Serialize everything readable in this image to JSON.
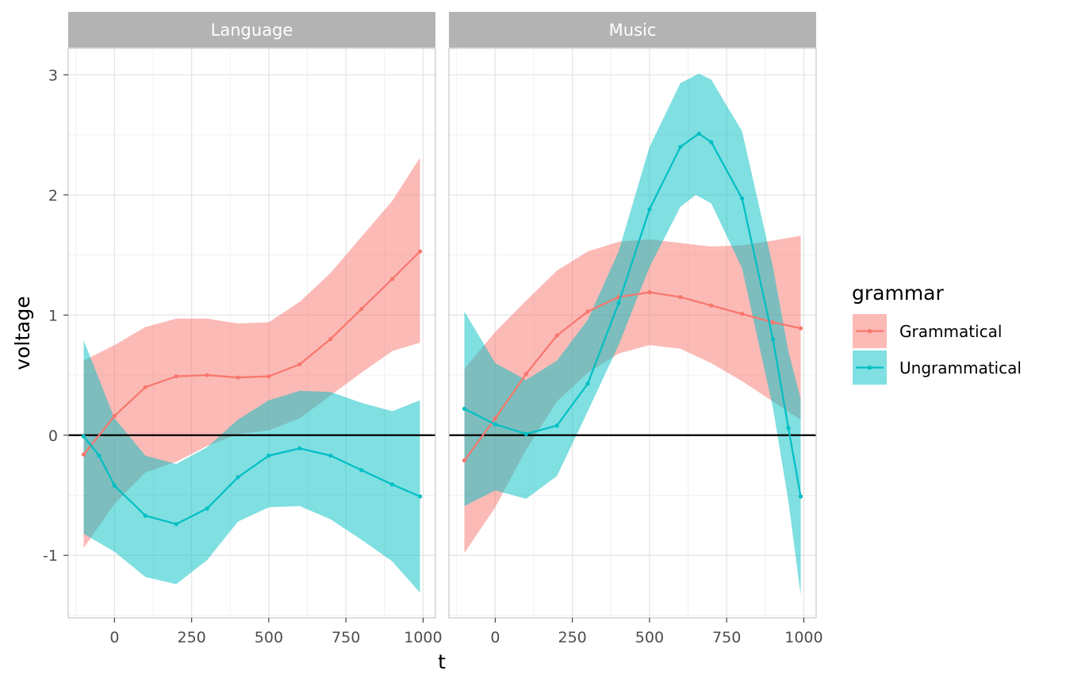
{
  "chart_data": {
    "type": "line",
    "xlabel": "t",
    "ylabel": "voltage",
    "xlim": [
      -150,
      1040
    ],
    "ylim": [
      -1.52,
      3.22
    ],
    "xticks": [
      0,
      250,
      500,
      750,
      1000
    ],
    "xtick_labels": [
      "0",
      "250",
      "500",
      "750",
      "1000"
    ],
    "yticks": [
      -1,
      0,
      1,
      2,
      3
    ],
    "ytick_labels": [
      "-1",
      "0",
      "1",
      "2",
      "3"
    ],
    "grid": true,
    "reference_line_y": 0,
    "legend": {
      "title": "grammar",
      "position": "right",
      "entries": [
        "Grammatical",
        "Ungrammatical"
      ]
    },
    "colors": {
      "Grammatical": "#F8766D",
      "Ungrammatical": "#00BFC4"
    },
    "facets": [
      {
        "name": "Language",
        "series": [
          {
            "name": "Grammatical",
            "points": [
              [
                -100,
                -0.16
              ],
              [
                0,
                0.16
              ],
              [
                100,
                0.4
              ],
              [
                200,
                0.49
              ],
              [
                300,
                0.5
              ],
              [
                400,
                0.48
              ],
              [
                500,
                0.49
              ],
              [
                600,
                0.59
              ],
              [
                700,
                0.8
              ],
              [
                800,
                1.05
              ],
              [
                900,
                1.3
              ],
              [
                990,
                1.53
              ]
            ],
            "lower": [
              [
                -100,
                -0.94
              ],
              [
                0,
                -0.57
              ],
              [
                100,
                -0.31
              ],
              [
                200,
                -0.22
              ],
              [
                300,
                -0.09
              ],
              [
                400,
                0.01
              ],
              [
                500,
                0.04
              ],
              [
                600,
                0.14
              ],
              [
                700,
                0.33
              ],
              [
                800,
                0.52
              ],
              [
                900,
                0.7
              ],
              [
                990,
                0.77
              ]
            ],
            "upper": [
              [
                -100,
                0.62
              ],
              [
                0,
                0.75
              ],
              [
                100,
                0.9
              ],
              [
                200,
                0.97
              ],
              [
                300,
                0.97
              ],
              [
                400,
                0.93
              ],
              [
                500,
                0.94
              ],
              [
                600,
                1.11
              ],
              [
                700,
                1.35
              ],
              [
                800,
                1.65
              ],
              [
                900,
                1.95
              ],
              [
                990,
                2.31
              ]
            ]
          },
          {
            "name": "Ungrammatical",
            "points": [
              [
                -100,
                -0.01
              ],
              [
                -50,
                -0.17
              ],
              [
                0,
                -0.42
              ],
              [
                100,
                -0.67
              ],
              [
                200,
                -0.74
              ],
              [
                300,
                -0.61
              ],
              [
                400,
                -0.35
              ],
              [
                500,
                -0.17
              ],
              [
                600,
                -0.11
              ],
              [
                700,
                -0.17
              ],
              [
                800,
                -0.29
              ],
              [
                900,
                -0.41
              ],
              [
                990,
                -0.51
              ]
            ],
            "lower": [
              [
                -100,
                -0.82
              ],
              [
                0,
                -0.97
              ],
              [
                100,
                -1.18
              ],
              [
                200,
                -1.24
              ],
              [
                300,
                -1.04
              ],
              [
                400,
                -0.72
              ],
              [
                500,
                -0.6
              ],
              [
                600,
                -0.59
              ],
              [
                700,
                -0.7
              ],
              [
                800,
                -0.87
              ],
              [
                900,
                -1.05
              ],
              [
                990,
                -1.31
              ]
            ],
            "upper": [
              [
                -100,
                0.79
              ],
              [
                0,
                0.14
              ],
              [
                100,
                -0.17
              ],
              [
                200,
                -0.24
              ],
              [
                300,
                -0.1
              ],
              [
                400,
                0.13
              ],
              [
                500,
                0.29
              ],
              [
                600,
                0.37
              ],
              [
                700,
                0.36
              ],
              [
                800,
                0.27
              ],
              [
                900,
                0.2
              ],
              [
                990,
                0.29
              ]
            ]
          }
        ]
      },
      {
        "name": "Music",
        "series": [
          {
            "name": "Grammatical",
            "points": [
              [
                -100,
                -0.21
              ],
              [
                0,
                0.14
              ],
              [
                100,
                0.51
              ],
              [
                200,
                0.83
              ],
              [
                300,
                1.03
              ],
              [
                400,
                1.15
              ],
              [
                500,
                1.19
              ],
              [
                600,
                1.15
              ],
              [
                700,
                1.08
              ],
              [
                800,
                1.01
              ],
              [
                900,
                0.94
              ],
              [
                990,
                0.89
              ]
            ],
            "lower": [
              [
                -100,
                -0.98
              ],
              [
                0,
                -0.6
              ],
              [
                100,
                -0.12
              ],
              [
                200,
                0.28
              ],
              [
                300,
                0.52
              ],
              [
                400,
                0.68
              ],
              [
                500,
                0.75
              ],
              [
                600,
                0.72
              ],
              [
                700,
                0.6
              ],
              [
                800,
                0.45
              ],
              [
                900,
                0.28
              ],
              [
                990,
                0.13
              ]
            ],
            "upper": [
              [
                -100,
                0.55
              ],
              [
                0,
                0.86
              ],
              [
                100,
                1.12
              ],
              [
                200,
                1.37
              ],
              [
                300,
                1.53
              ],
              [
                400,
                1.61
              ],
              [
                500,
                1.63
              ],
              [
                600,
                1.6
              ],
              [
                700,
                1.57
              ],
              [
                800,
                1.58
              ],
              [
                900,
                1.62
              ],
              [
                990,
                1.66
              ]
            ]
          },
          {
            "name": "Ungrammatical",
            "points": [
              [
                -100,
                0.22
              ],
              [
                0,
                0.09
              ],
              [
                100,
                0.01
              ],
              [
                200,
                0.08
              ],
              [
                300,
                0.43
              ],
              [
                400,
                1.1
              ],
              [
                500,
                1.88
              ],
              [
                600,
                2.4
              ],
              [
                660,
                2.51
              ],
              [
                700,
                2.44
              ],
              [
                800,
                1.97
              ],
              [
                900,
                0.8
              ],
              [
                950,
                0.06
              ],
              [
                990,
                -0.51
              ]
            ],
            "lower": [
              [
                -100,
                -0.59
              ],
              [
                0,
                -0.46
              ],
              [
                100,
                -0.53
              ],
              [
                200,
                -0.34
              ],
              [
                300,
                0.2
              ],
              [
                400,
                0.75
              ],
              [
                500,
                1.4
              ],
              [
                600,
                1.9
              ],
              [
                650,
                2.0
              ],
              [
                700,
                1.93
              ],
              [
                800,
                1.39
              ],
              [
                900,
                0.23
              ],
              [
                950,
                -0.55
              ],
              [
                990,
                -1.33
              ]
            ],
            "upper": [
              [
                -100,
                1.03
              ],
              [
                0,
                0.6
              ],
              [
                100,
                0.46
              ],
              [
                200,
                0.62
              ],
              [
                300,
                0.96
              ],
              [
                400,
                1.53
              ],
              [
                500,
                2.4
              ],
              [
                600,
                2.93
              ],
              [
                660,
                3.01
              ],
              [
                700,
                2.96
              ],
              [
                800,
                2.53
              ],
              [
                900,
                1.4
              ],
              [
                950,
                0.7
              ],
              [
                990,
                0.3
              ]
            ]
          }
        ]
      }
    ]
  }
}
